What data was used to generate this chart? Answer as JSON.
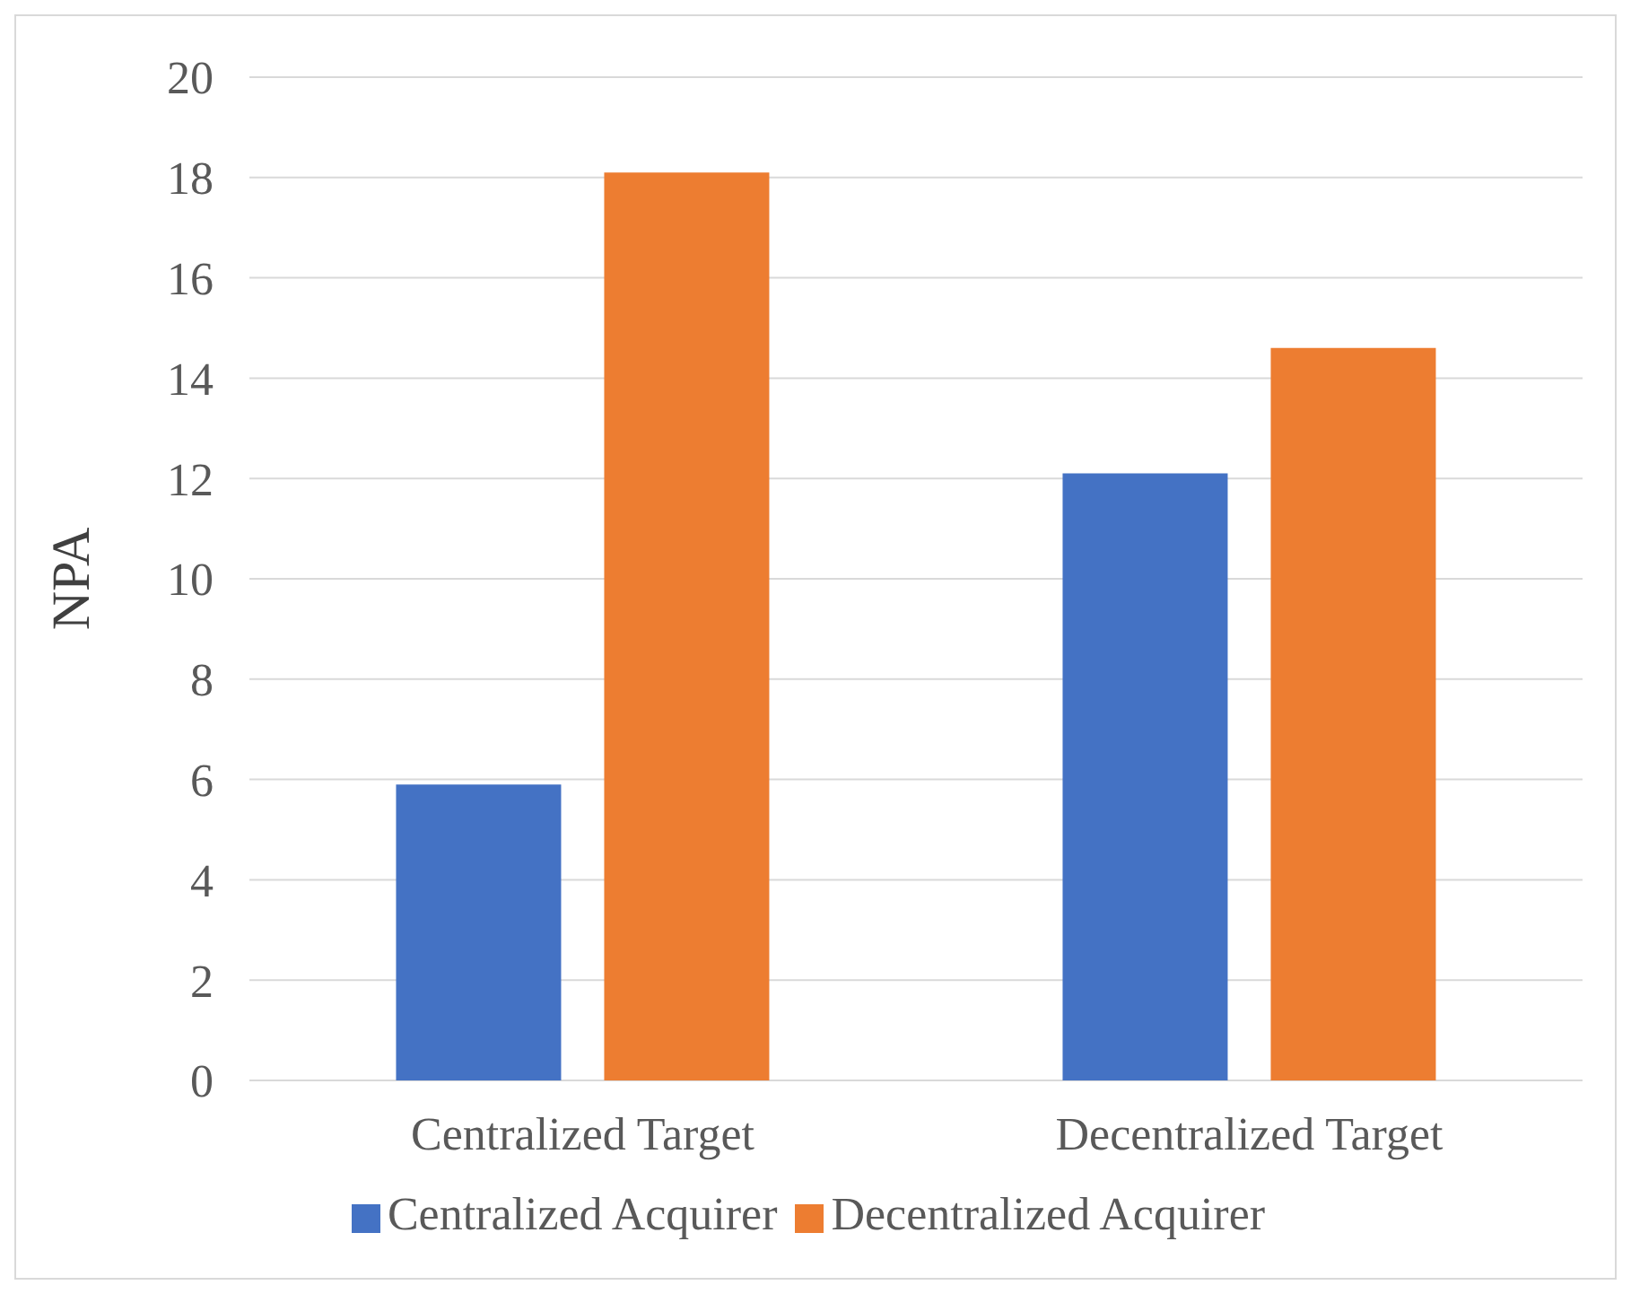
{
  "chart_data": {
    "type": "bar",
    "ylabel": "NPA",
    "categories": [
      "Centralized Target",
      "Decentralized Target"
    ],
    "series": [
      {
        "name": "Centralized Acquirer",
        "color": "#4472c4",
        "values": [
          5.9,
          12.1
        ]
      },
      {
        "name": "Decentralized Acquirer",
        "color": "#ed7d31",
        "values": [
          18.1,
          14.6
        ]
      }
    ],
    "ylim": [
      0,
      20
    ],
    "yticks": [
      0,
      2,
      4,
      6,
      8,
      10,
      12,
      14,
      16,
      18,
      20
    ],
    "grid": "y",
    "legend": "bottom"
  }
}
